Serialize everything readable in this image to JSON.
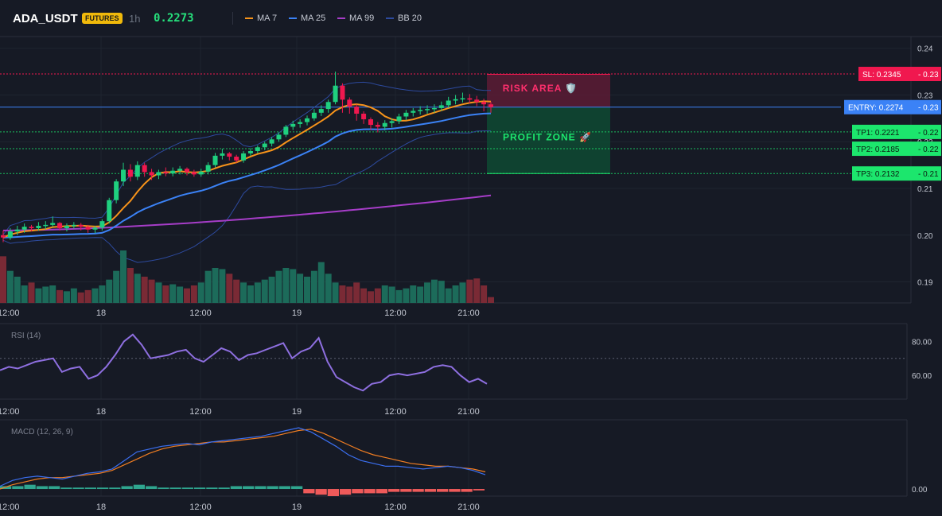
{
  "header": {
    "symbol": "ADA_USDT",
    "badge": "FUTURES",
    "timeframe": "1h",
    "price": "0.2273"
  },
  "legend": [
    {
      "label": "MA 7",
      "color": "#f7931a"
    },
    {
      "label": "MA 25",
      "color": "#3b82f6"
    },
    {
      "label": "MA 99",
      "color": "#a63dc8"
    },
    {
      "label": "BB 20",
      "color": "#2d4a9e"
    }
  ],
  "colors": {
    "background": "#161a25",
    "up": "#1fd07f",
    "down": "#f0184f",
    "vol_up": "#1c6b5a",
    "vol_down": "#7a2a35",
    "rsi": "#8e6fe0",
    "macd": "#3b6ff0",
    "signal": "#f07d22",
    "hist_up": "#2fa58f",
    "hist_down": "#ef5a5a",
    "sl": "#f0184f",
    "entry": "#3b82f6",
    "tp": "#1ce66d"
  },
  "annotations": {
    "risk_label": "RISK AREA 🛡️",
    "profit_label": "PROFIT ZONE 🚀",
    "sl_tag": "SL: 0.2345",
    "entry_tag": "ENTRY: 0.2274",
    "tp1_tag": "TP1: 0.2221",
    "tp2_tag": "TP2: 0.2185",
    "tp3_tag": "TP3: 0.2132",
    "sl_axis": "0.23",
    "entry_axis": "0.23",
    "tp1_axis": "0.22",
    "tp2_axis": "0.22",
    "tp3_axis": "0.21"
  },
  "chart_data": [
    {
      "type": "candlestick",
      "title": "ADA_USDT",
      "x_labels": [
        "12:00",
        "18",
        "12:00",
        "19",
        "12:00",
        "21:00"
      ],
      "y_ticks": [
        "0.24",
        "0.23",
        "0.22",
        "0.21",
        "0.20",
        "0.19"
      ],
      "ylim": [
        0.1855,
        0.2425
      ],
      "levels": {
        "sl": 0.2345,
        "entry": 0.2274,
        "tp1": 0.2221,
        "tp2": 0.2185,
        "tp3": 0.2132
      },
      "candles": [
        [
          0.2,
          0.1995,
          0.201,
          0.1985
        ],
        [
          0.1995,
          0.2008,
          0.2015,
          0.199
        ],
        [
          0.2008,
          0.2012,
          0.202,
          0.2
        ],
        [
          0.2012,
          0.2018,
          0.2025,
          0.2005
        ],
        [
          0.2018,
          0.2015,
          0.2022,
          0.2008
        ],
        [
          0.2015,
          0.202,
          0.2028,
          0.201
        ],
        [
          0.202,
          0.2022,
          0.203,
          0.2012
        ],
        [
          0.2022,
          0.2026,
          0.204,
          0.2018
        ],
        [
          0.2026,
          0.2015,
          0.2028,
          0.201
        ],
        [
          0.2015,
          0.202,
          0.2025,
          0.2008
        ],
        [
          0.202,
          0.2022,
          0.2028,
          0.2014
        ],
        [
          0.2022,
          0.2018,
          0.2026,
          0.201
        ],
        [
          0.2018,
          0.2012,
          0.2022,
          0.2005
        ],
        [
          0.2012,
          0.2016,
          0.202,
          0.2004
        ],
        [
          0.2016,
          0.203,
          0.2034,
          0.201
        ],
        [
          0.203,
          0.2075,
          0.208,
          0.2025
        ],
        [
          0.2075,
          0.2115,
          0.212,
          0.2068
        ],
        [
          0.2115,
          0.214,
          0.2155,
          0.2105
        ],
        [
          0.214,
          0.2125,
          0.2152,
          0.2115
        ],
        [
          0.2125,
          0.215,
          0.2158,
          0.2118
        ],
        [
          0.215,
          0.2135,
          0.2155,
          0.2125
        ],
        [
          0.2135,
          0.2128,
          0.2142,
          0.2118
        ],
        [
          0.2128,
          0.2135,
          0.214,
          0.212
        ],
        [
          0.2135,
          0.2132,
          0.2145,
          0.2126
        ],
        [
          0.2132,
          0.2138,
          0.2145,
          0.2126
        ],
        [
          0.2138,
          0.2142,
          0.2148,
          0.213
        ],
        [
          0.2142,
          0.2135,
          0.2145,
          0.2128
        ],
        [
          0.2135,
          0.213,
          0.214,
          0.2125
        ],
        [
          0.213,
          0.2136,
          0.2142,
          0.2125
        ],
        [
          0.2136,
          0.215,
          0.2156,
          0.213
        ],
        [
          0.215,
          0.217,
          0.2176,
          0.2145
        ],
        [
          0.217,
          0.2175,
          0.2185,
          0.2162
        ],
        [
          0.2175,
          0.2168,
          0.2178,
          0.216
        ],
        [
          0.2168,
          0.216,
          0.2172,
          0.2155
        ],
        [
          0.216,
          0.2175,
          0.218,
          0.2155
        ],
        [
          0.2175,
          0.218,
          0.2186,
          0.217
        ],
        [
          0.218,
          0.2188,
          0.2192,
          0.2175
        ],
        [
          0.2188,
          0.2196,
          0.22,
          0.2182
        ],
        [
          0.2196,
          0.2205,
          0.221,
          0.219
        ],
        [
          0.2205,
          0.2215,
          0.222,
          0.22
        ],
        [
          0.2215,
          0.2232,
          0.2236,
          0.221
        ],
        [
          0.2232,
          0.2238,
          0.2245,
          0.2225
        ],
        [
          0.2238,
          0.2242,
          0.2248,
          0.223
        ],
        [
          0.2242,
          0.225,
          0.2256,
          0.2235
        ],
        [
          0.225,
          0.2262,
          0.227,
          0.2245
        ],
        [
          0.2262,
          0.227,
          0.2278,
          0.2255
        ],
        [
          0.227,
          0.2285,
          0.229,
          0.2262
        ],
        [
          0.2285,
          0.232,
          0.235,
          0.228
        ],
        [
          0.232,
          0.229,
          0.2325,
          0.2262
        ],
        [
          0.229,
          0.2275,
          0.2295,
          0.226
        ],
        [
          0.2275,
          0.226,
          0.228,
          0.2245
        ],
        [
          0.226,
          0.2248,
          0.2265,
          0.2238
        ],
        [
          0.2248,
          0.2236,
          0.2252,
          0.2225
        ],
        [
          0.2236,
          0.2232,
          0.2242,
          0.222
        ],
        [
          0.2232,
          0.224,
          0.2246,
          0.2224
        ],
        [
          0.224,
          0.2244,
          0.225,
          0.223
        ],
        [
          0.2244,
          0.2254,
          0.226,
          0.2238
        ],
        [
          0.2254,
          0.2262,
          0.2268,
          0.2246
        ],
        [
          0.2262,
          0.2266,
          0.2272,
          0.2254
        ],
        [
          0.2266,
          0.2268,
          0.2276,
          0.2258
        ],
        [
          0.2268,
          0.227,
          0.2278,
          0.226
        ],
        [
          0.227,
          0.2272,
          0.228,
          0.2262
        ],
        [
          0.2272,
          0.2278,
          0.2286,
          0.2266
        ],
        [
          0.2278,
          0.2288,
          0.2296,
          0.2272
        ],
        [
          0.2288,
          0.2291,
          0.23,
          0.228
        ],
        [
          0.2291,
          0.2293,
          0.2305,
          0.2284
        ],
        [
          0.2293,
          0.229,
          0.2302,
          0.2282
        ],
        [
          0.229,
          0.2285,
          0.2298,
          0.2276
        ],
        [
          0.2285,
          0.228,
          0.2292,
          0.2265
        ],
        [
          0.228,
          0.2274,
          0.2285,
          0.2262
        ]
      ],
      "volume": [
        80,
        55,
        45,
        30,
        35,
        25,
        28,
        30,
        22,
        20,
        25,
        18,
        22,
        25,
        30,
        40,
        55,
        90,
        60,
        50,
        45,
        40,
        35,
        30,
        32,
        28,
        25,
        30,
        35,
        55,
        60,
        58,
        50,
        40,
        35,
        30,
        35,
        40,
        45,
        55,
        60,
        58,
        50,
        45,
        55,
        70,
        50,
        35,
        30,
        28,
        35,
        25,
        20,
        25,
        30,
        28,
        22,
        25,
        30,
        28,
        35,
        40,
        38,
        25,
        30,
        35,
        40,
        42,
        30,
        10
      ]
    },
    {
      "type": "line",
      "title": "RSI (14)",
      "y_ticks": [
        "80.00",
        "60.00"
      ],
      "ylim": [
        46,
        90
      ],
      "reference_line": 70,
      "values": [
        63,
        65,
        64,
        66,
        68,
        69,
        70,
        62,
        64,
        65,
        58,
        60,
        65,
        72,
        80,
        84,
        78,
        70,
        71,
        72,
        74,
        75,
        70,
        68,
        72,
        76,
        74,
        69,
        72,
        73,
        75,
        77,
        79,
        70,
        74,
        76,
        82,
        68,
        59,
        56,
        53,
        51,
        55,
        56,
        60,
        61,
        60,
        61,
        62,
        65,
        66,
        65,
        60,
        56,
        58,
        55
      ]
    },
    {
      "type": "bar",
      "title": "MACD (12, 26, 9)",
      "y_ticks": [
        "0.00"
      ],
      "ylim": [
        -0.0005,
        0.0048
      ],
      "macd": [
        0.0002,
        0.0006,
        0.0008,
        0.0009,
        0.0008,
        0.0007,
        0.0009,
        0.0011,
        0.0012,
        0.0014,
        0.002,
        0.0026,
        0.0028,
        0.003,
        0.0031,
        0.0032,
        0.0031,
        0.0033,
        0.0034,
        0.0035,
        0.0036,
        0.0037,
        0.0039,
        0.0041,
        0.0043,
        0.004,
        0.0035,
        0.003,
        0.0024,
        0.002,
        0.0018,
        0.0016,
        0.0016,
        0.0015,
        0.0014,
        0.0015,
        0.0016,
        0.0015,
        0.0013,
        0.001
      ],
      "signal": [
        0.0,
        0.0003,
        0.0005,
        0.0007,
        0.0008,
        0.0008,
        0.0009,
        0.001,
        0.0011,
        0.0013,
        0.0017,
        0.0021,
        0.0025,
        0.0028,
        0.003,
        0.0031,
        0.0032,
        0.0033,
        0.0033,
        0.0034,
        0.0035,
        0.0036,
        0.0037,
        0.0039,
        0.0041,
        0.0042,
        0.0039,
        0.0035,
        0.0031,
        0.0027,
        0.0024,
        0.0022,
        0.002,
        0.0018,
        0.0017,
        0.0016,
        0.0016,
        0.0015,
        0.0014,
        0.0012
      ],
      "histogram": [
        0.0002,
        0.0002,
        0.0003,
        0.0002,
        0.0002,
        0.0001,
        0.0001,
        0.0001,
        0.0001,
        0.0001,
        0.0002,
        0.0003,
        0.0002,
        0.0001,
        0.0001,
        0.0001,
        0.0001,
        0.0001,
        0.0001,
        0.0002,
        0.0002,
        0.0002,
        0.0002,
        0.0002,
        0.0002,
        -0.0003,
        -0.0004,
        -0.0005,
        -0.0004,
        -0.0003,
        -0.0003,
        -0.0003,
        -0.0002,
        -0.0002,
        -0.0002,
        -0.0002,
        -0.0002,
        -0.0002,
        -0.0002,
        -0.0001
      ]
    }
  ]
}
